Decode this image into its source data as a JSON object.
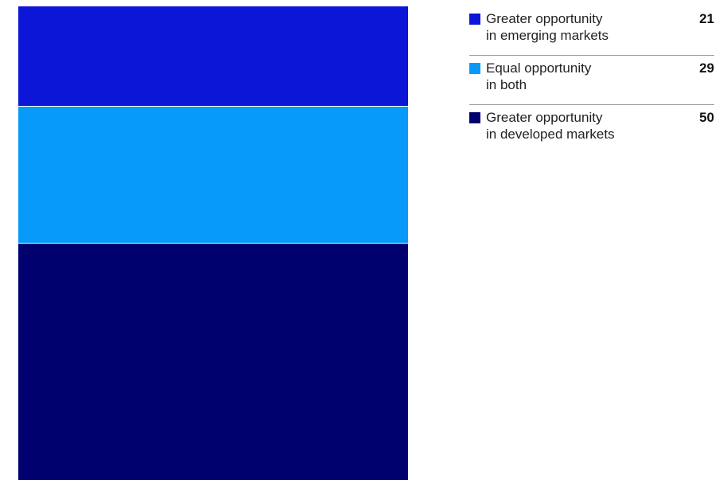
{
  "chart_data": {
    "type": "bar",
    "stacked": true,
    "series": [
      {
        "name": "Greater opportunity\nin emerging markets",
        "value": 21,
        "color": "#0b16d6"
      },
      {
        "name": "Equal opportunity\nin both",
        "value": 29,
        "color": "#079af8"
      },
      {
        "name": "Greater opportunity\nin developed markets",
        "value": 50,
        "color": "#00006f"
      }
    ],
    "title": "",
    "xlabel": "",
    "ylabel": "",
    "legend": "right"
  }
}
